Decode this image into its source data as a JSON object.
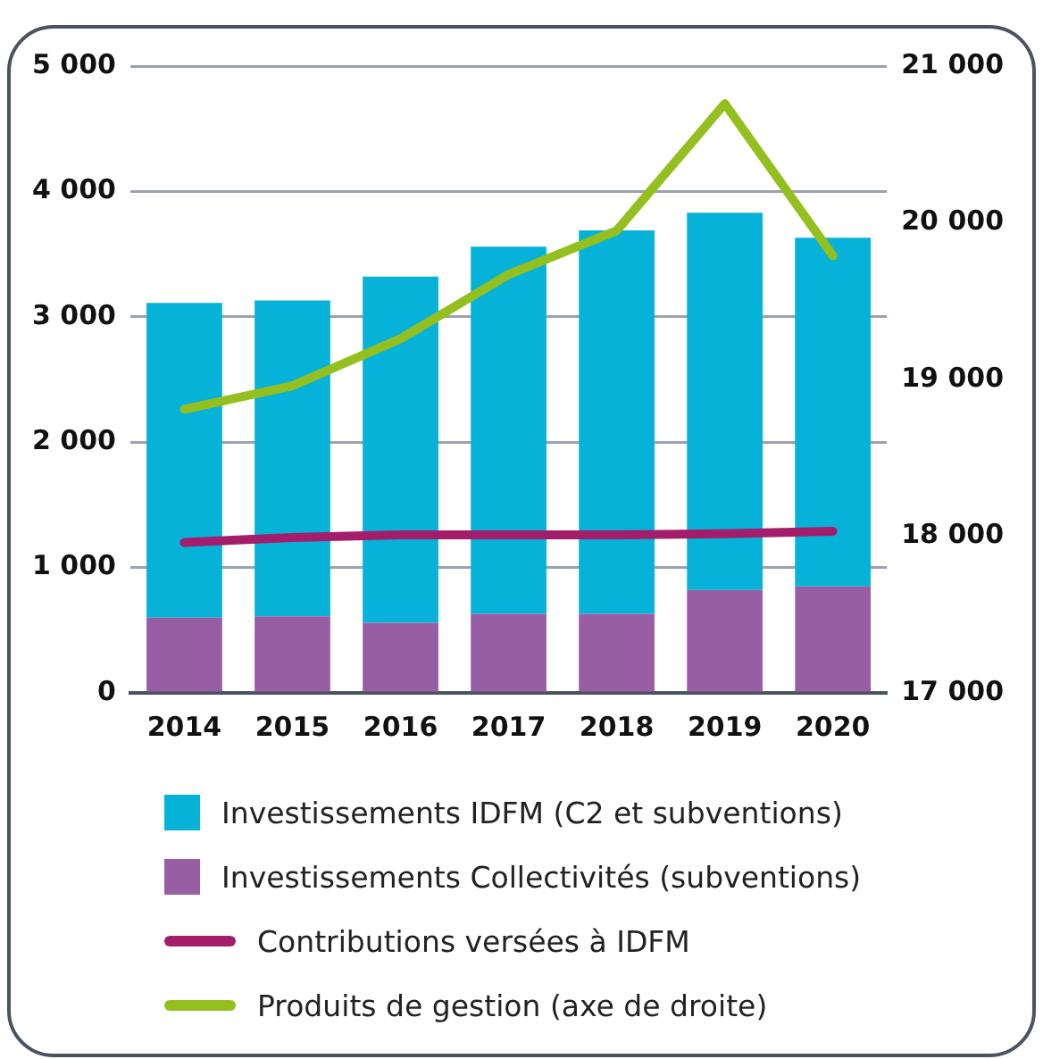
{
  "chart_data": {
    "type": "bar",
    "stacked": true,
    "categories": [
      "2014",
      "2015",
      "2016",
      "2017",
      "2018",
      "2019",
      "2020"
    ],
    "series": [
      {
        "name": "Investissements Collectivités (subventions)",
        "color": "#985ea4",
        "values": [
          600,
          610,
          560,
          630,
          630,
          820,
          850
        ]
      },
      {
        "name": "Investissements IDFM (C2 et subventions)",
        "color": "#07b2d9",
        "values": [
          2510,
          2520,
          2760,
          2930,
          3060,
          3010,
          2780
        ]
      },
      {
        "name": "Contributions versées à IDFM",
        "type": "line",
        "color": "#a41d6b",
        "values": [
          1200,
          1240,
          1260,
          1260,
          1260,
          1270,
          1290
        ]
      },
      {
        "name": "Produits de gestion (axe de droite)",
        "type": "line",
        "axis": "y2",
        "color": "#93c01f",
        "values": [
          18810,
          18960,
          19260,
          19670,
          19950,
          20760,
          19790
        ]
      }
    ],
    "ylim": [
      0,
      5000
    ],
    "yticks": [
      0,
      {
        "value": 1000,
        "label": "1 000"
      },
      {
        "value": 2000,
        "label": "2 000"
      },
      {
        "value": 3000,
        "label": "3 000"
      },
      {
        "value": 4000,
        "label": "4 000"
      },
      {
        "value": 5000,
        "label": "5 000"
      }
    ],
    "y2lim": [
      17000,
      21000
    ],
    "y2ticks": [
      {
        "value": 17000,
        "label": "17 000"
      },
      {
        "value": 18000,
        "label": "18 000"
      },
      {
        "value": 19000,
        "label": "19 000"
      },
      {
        "value": 20000,
        "label": "20 000"
      },
      {
        "value": 21000,
        "label": "21 000"
      }
    ],
    "grid": "y",
    "legend": "bottom",
    "marker": "none"
  }
}
